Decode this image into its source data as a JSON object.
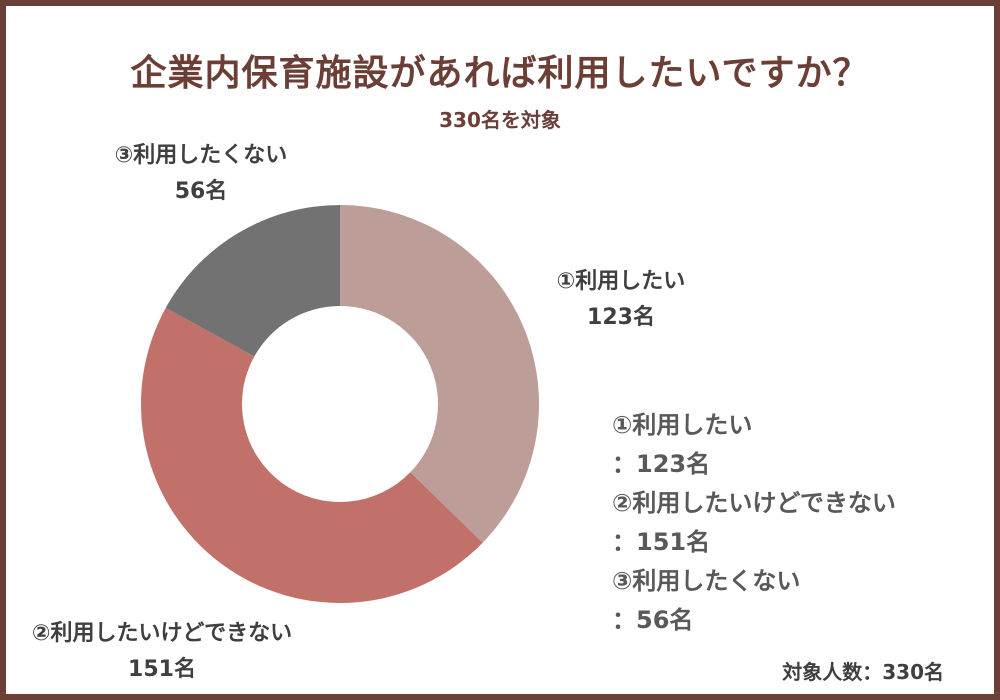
{
  "title": "企業内保育施設があれば利用したいですか？",
  "subtitle": "330名を対象",
  "chart_data": {
    "type": "pie",
    "total": 330,
    "categories": [
      "①利用したい",
      "②利用したいけどできない",
      "③利用したくない"
    ],
    "values": [
      123,
      151,
      56
    ],
    "colors": [
      "#bd9d98",
      "#c2706a",
      "#727272"
    ],
    "value_labels": [
      "123名",
      "151名",
      "56名"
    ],
    "start_angle_deg": 0,
    "direction": "clockwise"
  },
  "slice_labels": [
    {
      "name": "①利用したい",
      "value": "123名"
    },
    {
      "name": "②利用したいけどできない",
      "value": "151名"
    },
    {
      "name": "③利用したくない",
      "value": "56名"
    }
  ],
  "legend": [
    {
      "name": "①利用したい",
      "value": "：123名"
    },
    {
      "name": "②利用したいけどできない",
      "value": "：151名"
    },
    {
      "name": "③利用したくない",
      "value": "：56名"
    }
  ],
  "footer": "対象人数：330名"
}
